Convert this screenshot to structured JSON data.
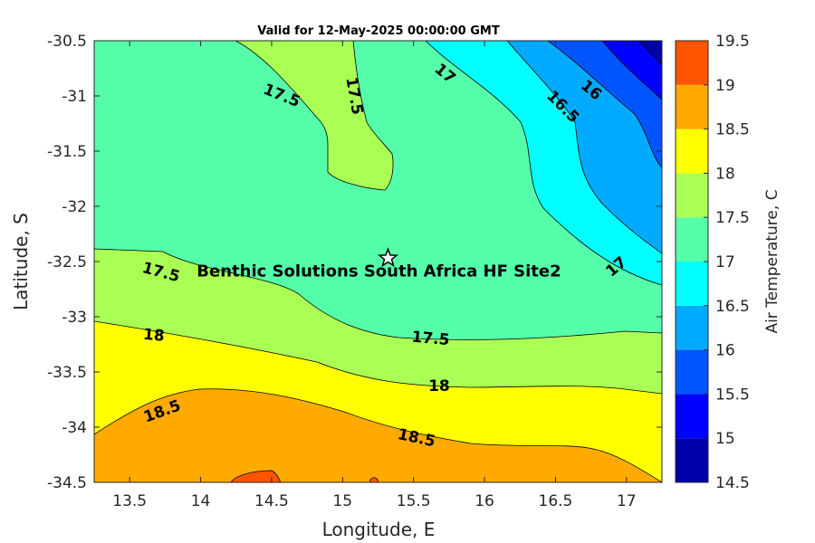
{
  "chart_data": {
    "type": "contour",
    "title": "Valid for 12-May-2025 00:00:00 GMT",
    "xlabel": "Longitude, E",
    "ylabel": "Latitude, S",
    "colorbar_label": "Air Temperature, C",
    "xlim": [
      13.25,
      17.25
    ],
    "ylim": [
      -34.5,
      -30.5
    ],
    "x_ticks": [
      "13.5",
      "14",
      "14.5",
      "15",
      "15.5",
      "16",
      "16.5",
      "17"
    ],
    "x_tick_values": [
      13.5,
      14,
      14.5,
      15,
      15.5,
      16,
      16.5,
      17
    ],
    "y_ticks": [
      "-30.5",
      "-31",
      "-31.5",
      "-32",
      "-32.5",
      "-33",
      "-33.5",
      "-34",
      "-34.5"
    ],
    "y_tick_values": [
      -30.5,
      -31,
      -31.5,
      -32,
      -32.5,
      -33,
      -33.5,
      -34,
      -34.5
    ],
    "colorbar_ticks": [
      "19.5",
      "19",
      "18.5",
      "18",
      "17.5",
      "17",
      "16.5",
      "16",
      "15.5",
      "15",
      "14.5"
    ],
    "colorbar_levels": [
      14.5,
      15,
      15.5,
      16,
      16.5,
      17,
      17.5,
      18,
      18.5,
      19,
      19.5
    ],
    "colorbar_colors": [
      "#0000aa",
      "#0000ff",
      "#0055ff",
      "#00aaff",
      "#00ffff",
      "#55ffaa",
      "#aaff55",
      "#ffff00",
      "#ffaa00",
      "#ff5500",
      "#ff0000"
    ],
    "contour_labels": [
      {
        "text": "17.5",
        "lon": 14.57,
        "lat": -31.0
      },
      {
        "text": "17.5",
        "lon": 15.08,
        "lat": -31.0
      },
      {
        "text": "17",
        "lon": 15.72,
        "lat": -30.8
      },
      {
        "text": "16.5",
        "lon": 16.55,
        "lat": -31.1
      },
      {
        "text": "16",
        "lon": 16.75,
        "lat": -30.95
      },
      {
        "text": "17.5",
        "lon": 13.72,
        "lat": -32.6
      },
      {
        "text": "17",
        "lon": 16.93,
        "lat": -32.55
      },
      {
        "text": "17.5",
        "lon": 15.62,
        "lat": -33.2
      },
      {
        "text": "18",
        "lon": 13.67,
        "lat": -33.17
      },
      {
        "text": "18",
        "lon": 15.68,
        "lat": -33.63
      },
      {
        "text": "18.5",
        "lon": 13.73,
        "lat": -33.86
      },
      {
        "text": "18.5",
        "lon": 15.52,
        "lat": -34.1
      }
    ],
    "site": {
      "name": "Benthic Solutions South Africa HF Site2",
      "lon": 15.32,
      "lat": -32.47
    }
  }
}
